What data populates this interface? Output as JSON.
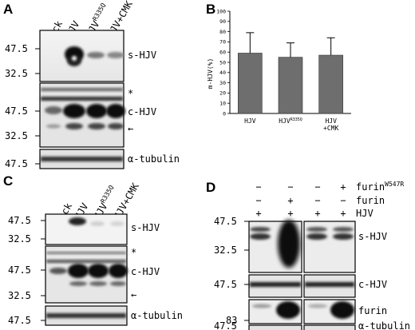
{
  "panels": {
    "A": {
      "label": "A",
      "lanes": [
        "mock",
        "HJV",
        "HJV",
        "HJV+CMK"
      ],
      "lane_sup": [
        "",
        "",
        "R335Q",
        ""
      ],
      "blot1": {
        "mw": [
          "47.5",
          "32.5"
        ],
        "label": "s-HJV"
      },
      "blot2": {
        "mw": [
          "47.5",
          "32.5"
        ],
        "label": "c-HJV",
        "star": "*",
        "arrow": "←"
      },
      "blot3": {
        "mw": [
          "47.5"
        ],
        "label": "α-tubulin"
      }
    },
    "B": {
      "label": "B",
      "ylabel": "m-HJV(%)"
    },
    "C": {
      "label": "C",
      "lanes": [
        "mock",
        "HJV",
        "HJV",
        "HJV+CMK"
      ],
      "lane_sup": [
        "",
        "",
        "R335Q",
        ""
      ],
      "blot1": {
        "mw": [
          "47.5",
          "32.5"
        ],
        "label": "s-HJV"
      },
      "blot2": {
        "mw": [
          "47.5",
          "32.5"
        ],
        "label": "c-HJV",
        "star": "*",
        "arrow": "←"
      },
      "blot3": {
        "mw": [
          "47.5"
        ],
        "label": "α-tubulin"
      }
    },
    "D": {
      "label": "D",
      "rows": [
        {
          "label": "furin",
          "sup": "W547R",
          "signs": [
            "−",
            "−",
            "−",
            "+"
          ]
        },
        {
          "label": "furin",
          "sup": "",
          "signs": [
            "−",
            "+",
            "−",
            "−"
          ]
        },
        {
          "label": "HJV",
          "sup": "",
          "signs": [
            "+",
            "+",
            "+",
            "+"
          ]
        }
      ],
      "blot1": {
        "mw": [
          "47.5",
          "32.5"
        ],
        "label": "s-HJV"
      },
      "blot2": {
        "mw": [
          "47.5"
        ],
        "label": "c-HJV"
      },
      "blot3": {
        "mw": [
          "83"
        ],
        "label": "furin"
      },
      "blot4": {
        "mw": [
          "47.5"
        ],
        "label": "α-tubulin"
      }
    }
  },
  "chart_data": {
    "type": "bar",
    "categories": [
      "HJV",
      "HJV R335Q",
      "HJV +CMK"
    ],
    "values": [
      59,
      55,
      57
    ],
    "errors": [
      20,
      14,
      17
    ],
    "ylabel": "m-HJV(%)",
    "ylim": [
      0,
      100
    ],
    "yticks": [
      0,
      10,
      20,
      30,
      40,
      50,
      60,
      70,
      80,
      90,
      100
    ],
    "cat_lines": [
      [
        "HJV"
      ],
      [
        "HJV",
        "R335Q"
      ],
      [
        "HJV",
        "+CMK"
      ]
    ],
    "bar_color": "#6e6e6e"
  }
}
